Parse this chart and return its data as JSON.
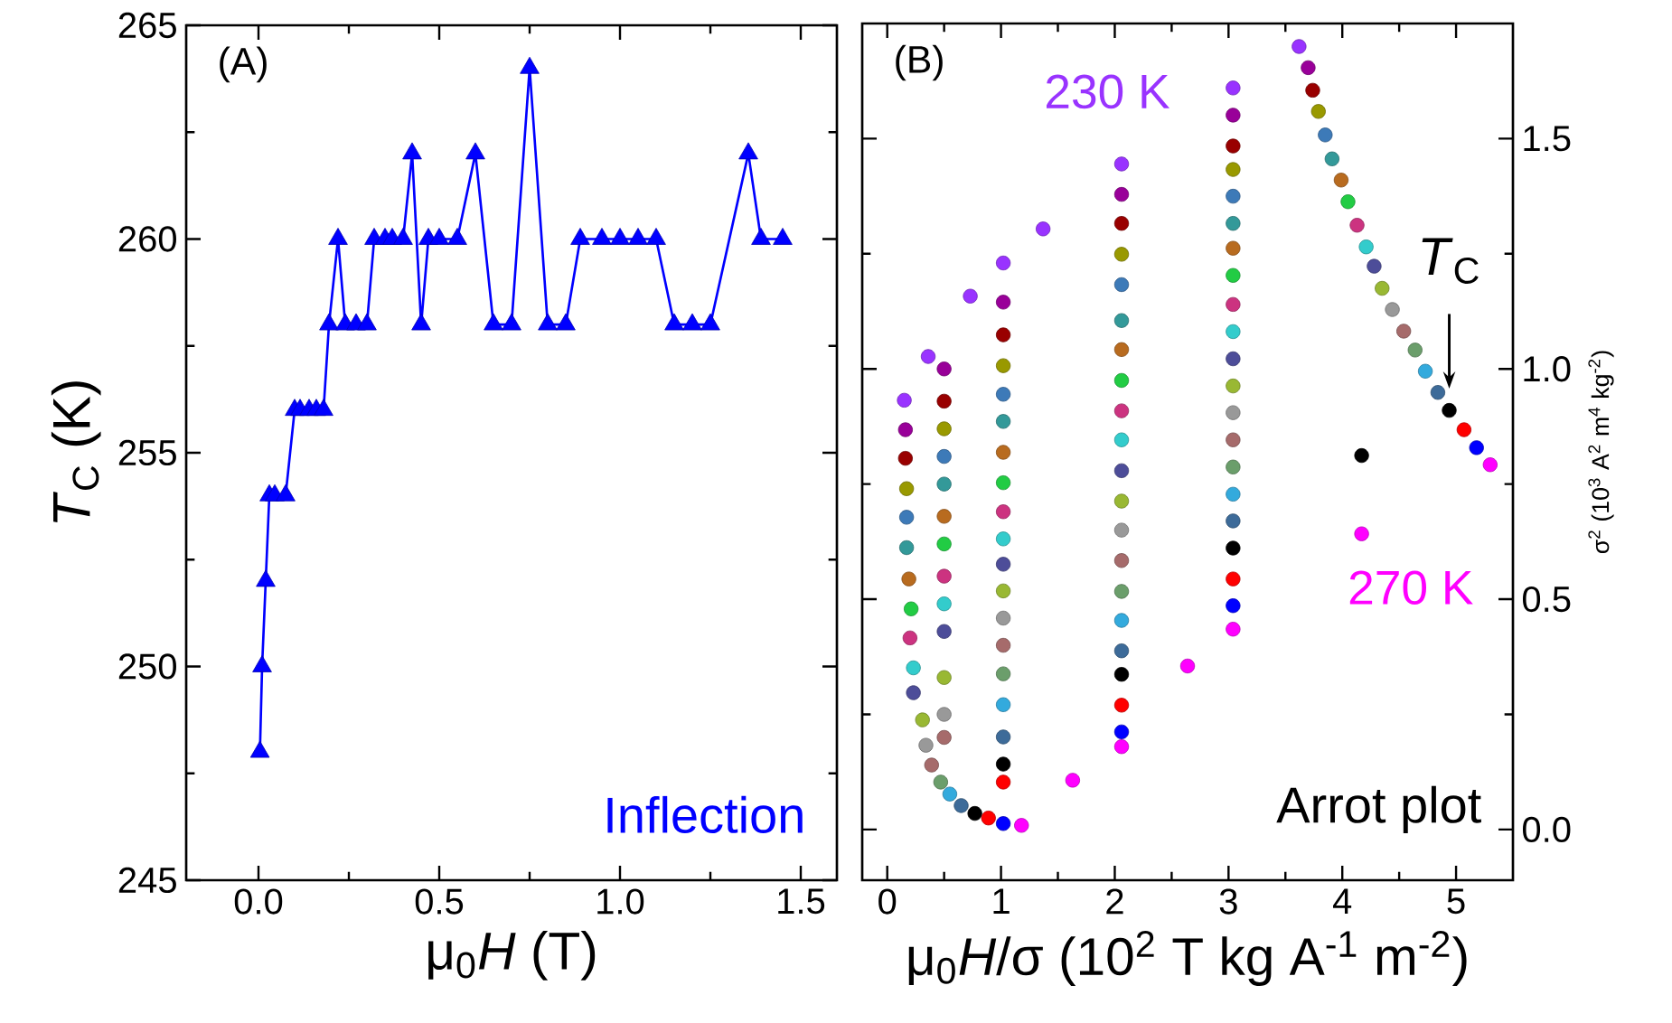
{
  "chart_data": [
    {
      "type": "line",
      "xlabel": "μ$_{0}$*H* (T)",
      "ylabel": "*T*$_{C}$ (K)",
      "xlim": [
        -0.2,
        1.6
      ],
      "ylim": [
        245,
        265
      ],
      "xticks": [
        {
          "value": 0,
          "label": "0.0"
        },
        {
          "value": 0.5,
          "label": "0.5"
        },
        {
          "value": 1,
          "label": "1.0"
        },
        {
          "value": 1.5,
          "label": "1.5"
        }
      ],
      "yticks": [
        245,
        250,
        255,
        260,
        265
      ],
      "marker": "triangle",
      "line_style": "solid",
      "annotations": [
        "(A)",
        "Inflection"
      ],
      "series": [
        {
          "color": "#0000ff",
          "x": [
            0.004,
            0.01,
            0.02,
            0.03,
            0.045,
            0.075,
            0.1,
            0.115,
            0.14,
            0.16,
            0.18,
            0.195,
            0.22,
            0.24,
            0.27,
            0.3,
            0.32,
            0.35,
            0.37,
            0.4,
            0.425,
            0.45,
            0.47,
            0.5,
            0.55,
            0.6,
            0.65,
            0.7,
            0.75,
            0.8,
            0.85,
            0.89,
            0.95,
            1.0,
            1.05,
            1.1,
            1.15,
            1.2,
            1.25,
            1.355,
            1.39,
            1.45
          ],
          "values": [
            248,
            250,
            252,
            254,
            254,
            254,
            256,
            256,
            256,
            256,
            256,
            258,
            260,
            258,
            258,
            258,
            260,
            260,
            260,
            260,
            262,
            258,
            260,
            260,
            260,
            262,
            258,
            258,
            264,
            258,
            258,
            260,
            260,
            260,
            260,
            260,
            258,
            258,
            258,
            262,
            260,
            260
          ]
        }
      ]
    },
    {
      "type": "scatter",
      "xlabel": "μ$_{0}$*H*/σ (10$^{2}$ T kg A$^{-1}$ m$^{-2}$)",
      "ylabel": "σ$^{2}$ (10$^{3}$ A$^{2}$ m$^{4}$ kg$^{-2}$)",
      "xlim": [
        -0.22,
        5.5
      ],
      "ylim": [
        -0.11,
        1.75
      ],
      "xticks": [
        0,
        1,
        2,
        3,
        4,
        5
      ],
      "yticks": [
        {
          "value": 0,
          "label": "0.0"
        },
        {
          "value": 0.5,
          "label": "0.5"
        },
        {
          "value": 1,
          "label": "1.0"
        },
        {
          "value": 1.5,
          "label": "1.5"
        }
      ],
      "marker": "circle",
      "annotations": [
        "(B)",
        "Arrot plot",
        {
          "text": "*T*$_{C}$",
          "x": 4.94,
          "y": 0.91
        }
      ],
      "series": [
        {
          "name": "230 K",
          "color": "#9933ff",
          "x": [
            0.15,
            0.36,
            0.73,
            1.02,
            1.37,
            2.06,
            3.04,
            3.62
          ],
          "values": [
            0.932,
            1.027,
            1.158,
            1.23,
            1.304,
            1.445,
            1.61,
            1.7
          ]
        },
        {
          "color": "#990099",
          "x": [
            0.16,
            0.5,
            1.02,
            2.06,
            3.04,
            3.7
          ],
          "values": [
            0.868,
            1.0,
            1.145,
            1.379,
            1.551,
            1.654
          ]
        },
        {
          "color": "#990000",
          "x": [
            0.16,
            0.5,
            1.02,
            2.06,
            3.04,
            3.74
          ],
          "values": [
            0.806,
            0.93,
            1.074,
            1.316,
            1.484,
            1.605
          ]
        },
        {
          "color": "#999900",
          "x": [
            0.17,
            0.5,
            1.02,
            2.06,
            3.04,
            3.79
          ],
          "values": [
            0.74,
            0.87,
            1.007,
            1.249,
            1.433,
            1.559
          ]
        },
        {
          "color": "#3d7ab8",
          "x": [
            0.17,
            0.5,
            1.02,
            2.06,
            3.04,
            3.85
          ],
          "values": [
            0.678,
            0.81,
            0.945,
            1.183,
            1.375,
            1.508
          ]
        },
        {
          "color": "#339999",
          "x": [
            0.17,
            0.5,
            1.02,
            2.06,
            3.04,
            3.91
          ],
          "values": [
            0.612,
            0.75,
            0.886,
            1.105,
            1.316,
            1.456
          ]
        },
        {
          "color": "#b86b1f",
          "x": [
            0.19,
            0.5,
            1.02,
            2.06,
            3.04,
            3.99
          ],
          "values": [
            0.544,
            0.68,
            0.819,
            1.042,
            1.262,
            1.41
          ]
        },
        {
          "color": "#22cc44",
          "x": [
            0.21,
            0.5,
            1.02,
            2.06,
            3.04,
            4.05
          ],
          "values": [
            0.479,
            0.62,
            0.753,
            0.975,
            1.203,
            1.363
          ]
        },
        {
          "color": "#cc3380",
          "x": [
            0.2,
            0.5,
            1.02,
            2.06,
            3.04,
            4.13
          ],
          "values": [
            0.416,
            0.55,
            0.69,
            0.909,
            1.14,
            1.312
          ]
        },
        {
          "color": "#33cccc",
          "x": [
            0.23,
            0.5,
            1.02,
            2.06,
            3.04,
            4.21
          ],
          "values": [
            0.351,
            0.49,
            0.631,
            0.846,
            1.081,
            1.265
          ]
        },
        {
          "color": "#4d4d99",
          "x": [
            0.23,
            0.5,
            1.02,
            2.06,
            3.04,
            4.28
          ],
          "values": [
            0.297,
            0.43,
            0.576,
            0.779,
            1.022,
            1.223
          ]
        },
        {
          "color": "#99b833",
          "x": [
            0.31,
            0.5,
            1.02,
            2.06,
            3.04,
            4.35
          ],
          "values": [
            0.238,
            0.33,
            0.518,
            0.713,
            0.963,
            1.175
          ]
        },
        {
          "color": "#999999",
          "x": [
            0.34,
            0.5,
            1.02,
            2.06,
            3.04,
            4.44
          ],
          "values": [
            0.183,
            0.25,
            0.459,
            0.65,
            0.905,
            1.129
          ]
        },
        {
          "color": "#a66b6b",
          "x": [
            0.39,
            0.5,
            1.02,
            2.06,
            3.04,
            4.54
          ],
          "values": [
            0.14,
            0.2,
            0.4,
            0.584,
            0.846,
            1.082
          ]
        },
        {
          "color": "#6b9e6b",
          "x": [
            0.47,
            1.02,
            2.06,
            3.04,
            4.64
          ],
          "values": [
            0.103,
            0.338,
            0.517,
            0.787,
            1.041
          ]
        },
        {
          "color": "#33aadd",
          "x": [
            0.55,
            1.02,
            2.06,
            3.04,
            4.73
          ],
          "values": [
            0.077,
            0.271,
            0.454,
            0.728,
            0.995
          ]
        },
        {
          "color": "#3d6b99",
          "x": [
            0.65,
            1.02,
            2.06,
            3.04,
            4.84
          ],
          "values": [
            0.052,
            0.201,
            0.388,
            0.67,
            0.949
          ]
        },
        {
          "color": "#000000",
          "x": [
            0.77,
            1.02,
            2.06,
            3.04,
            4.17,
            4.94
          ],
          "values": [
            0.035,
            0.142,
            0.337,
            0.611,
            0.812,
            0.91
          ]
        },
        {
          "color": "#ff0000",
          "x": [
            0.89,
            1.02,
            2.06,
            3.04,
            5.07
          ],
          "values": [
            0.025,
            0.103,
            0.27,
            0.544,
            0.868
          ]
        },
        {
          "color": "#0000ff",
          "x": [
            1.02,
            2.06,
            3.04,
            5.18
          ],
          "values": [
            0.013,
            0.212,
            0.486,
            0.829
          ]
        },
        {
          "name": "270 K",
          "color": "#ff00ff",
          "x": [
            1.18,
            1.63,
            2.06,
            2.64,
            3.04,
            4.17,
            5.3
          ],
          "values": [
            0.009,
            0.107,
            0.18,
            0.355,
            0.435,
            0.642,
            0.792
          ]
        }
      ]
    }
  ]
}
